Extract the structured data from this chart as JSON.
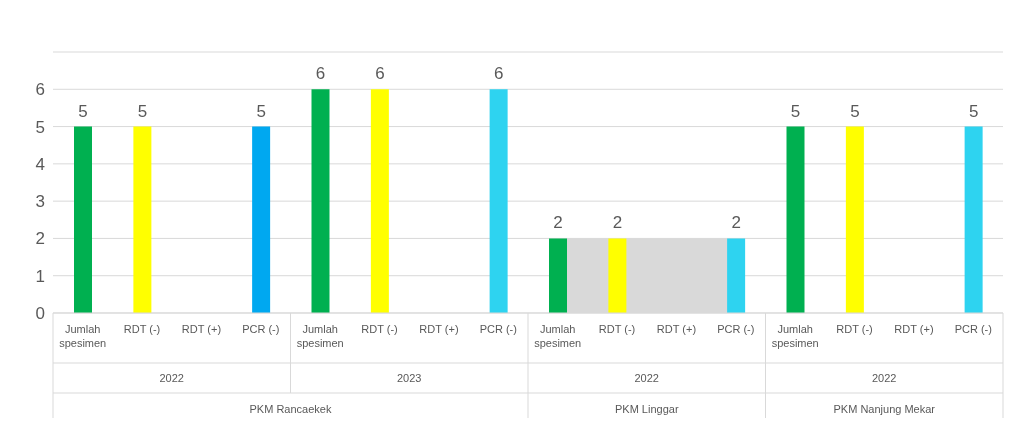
{
  "chart_data": {
    "type": "bar",
    "categories": [
      "Jumlah spesimen",
      "RDT (-)",
      "RDT (+)",
      "PCR (-)",
      "Jumlah spesimen",
      "RDT (-)",
      "RDT (+)",
      "PCR (-)",
      "Jumlah spesimen",
      "RDT (-)",
      "RDT (+)",
      "PCR (-)",
      "Jumlah spesimen",
      "RDT (-)",
      "RDT (+)",
      "PCR (-)"
    ],
    "series": [
      {
        "type": "area",
        "color": "#d9d9d9",
        "values": [
          null,
          null,
          null,
          null,
          null,
          null,
          null,
          null,
          2,
          2,
          2,
          2,
          null,
          null,
          null,
          null
        ]
      },
      {
        "colors": [
          "#00b050",
          "#ffff00",
          "#00b0f0",
          "#00a8f0",
          "#00b050",
          "#ffff00",
          "#00b0f0",
          "#2ed3f0",
          "#00b050",
          "#ffff00",
          "#00b0f0",
          "#2ed3f0",
          "#00b050",
          "#ffff00",
          "#00b0f0",
          "#2ed3f0"
        ],
        "values": [
          5,
          5,
          0,
          5,
          6,
          6,
          0,
          6,
          2,
          2,
          0,
          2,
          5,
          5,
          0,
          5
        ],
        "value_labels": [
          "5",
          "5",
          null,
          "5",
          "6",
          "6",
          null,
          "6",
          "2",
          "2",
          null,
          "2",
          "5",
          "5",
          null,
          "5"
        ]
      }
    ],
    "annotations": [
      "2022",
      "2023",
      "2022",
      "2022",
      "PKM Rancaekek",
      "PKM Linggar",
      "PKM Nanjung Mekar"
    ],
    "ylim": [
      0,
      7
    ],
    "yticks": [
      0,
      1,
      2,
      3,
      4,
      5,
      6
    ],
    "grid": "y"
  }
}
